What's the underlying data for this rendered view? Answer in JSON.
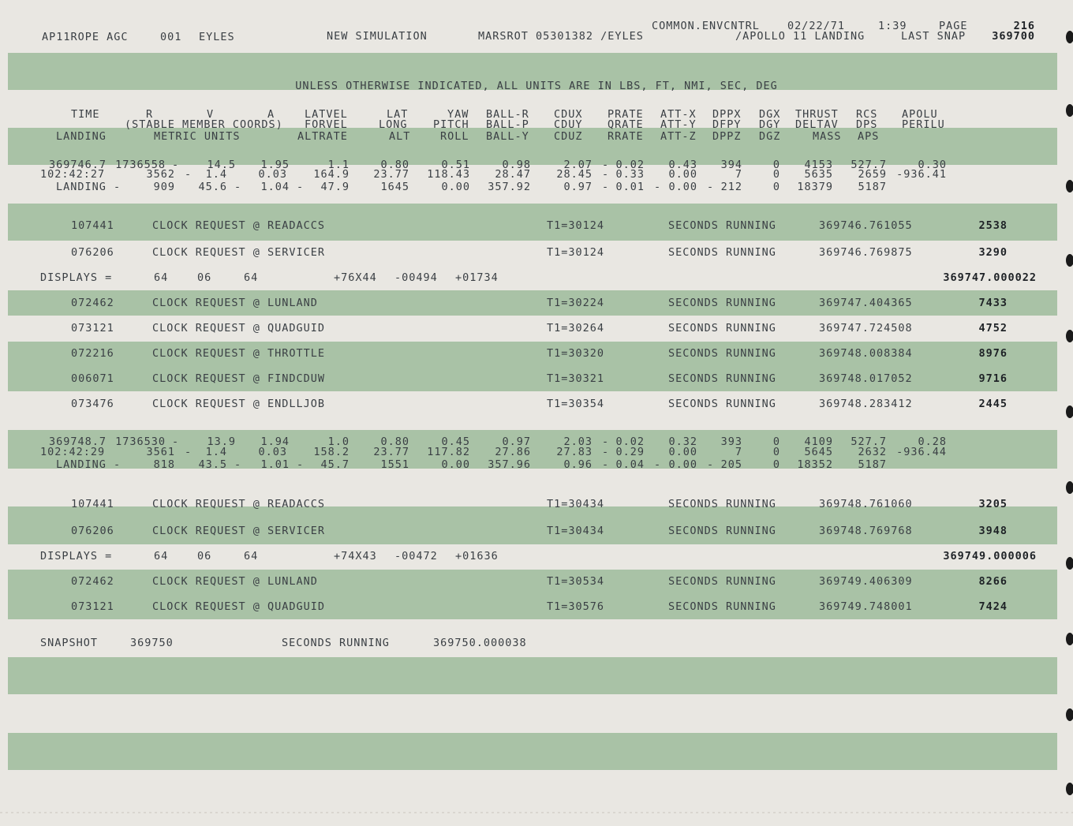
{
  "header": {
    "top": [
      "COMMON.ENVCNTRL",
      "02/22/71",
      "1:39",
      "PAGE",
      "216"
    ],
    "main": [
      "AP11ROPE AGC",
      "001",
      "EYLES",
      "NEW SIMULATION",
      "MARSROT 05301382 /EYLES",
      "/APOLLO 11 LANDING",
      "LAST SNAP",
      "369700"
    ]
  },
  "units_note": "UNLESS OTHERWISE INDICATED, ALL UNITS ARE IN LBS, FT, NMI, SEC, DEG",
  "column_headers": [
    [
      "TIME",
      "R",
      "V",
      "A",
      "LATVEL",
      "LAT",
      "YAW",
      "BALL-R",
      "CDUX",
      "PRATE",
      "ATT-X",
      "DPPX",
      "DGX",
      "THRUST",
      "RCS",
      "APOLU"
    ],
    [
      "(STABLE MEMBER COORDS)",
      "FORVEL",
      "LONG",
      "PITCH",
      "BALL-P",
      "CDUY",
      "QRATE",
      "ATT-Y",
      "DFPY",
      "DGY",
      "DELTAV",
      "DPS",
      "PERILU"
    ],
    [
      "LANDING",
      "METRIC UNITS",
      "ALTRATE",
      "ALT",
      "ROLL",
      "BALL-Y",
      "CDUZ",
      "RRATE",
      "ATT-Z",
      "DPPZ",
      "DGZ",
      "MASS",
      "APS"
    ]
  ],
  "listing": [
    [
      "369746.7",
      "1736558",
      "-",
      "14.5",
      "1.95",
      "1.1",
      "0.80",
      "0.51",
      "0.98",
      "2.07",
      "-",
      "0.02",
      "0.43",
      "394",
      "0",
      "4153",
      "527.7",
      "0.30"
    ],
    [
      "102:42:27",
      "3562",
      "-",
      "1.4",
      "0.03",
      "164.9",
      "23.77",
      "118.43",
      "28.47",
      "28.45",
      "-",
      "0.33",
      "0.00",
      "7",
      "0",
      "5635",
      "2659",
      "-936.41"
    ],
    [
      "LANDING -",
      "909",
      "45.6",
      "-",
      "1.04",
      "-",
      "47.9",
      "1645",
      "0.00",
      "357.92",
      "0.97",
      "-",
      "0.01",
      "-",
      "0.00",
      "-",
      "212",
      "0",
      "18379",
      "5187"
    ],
    [
      "107441",
      "CLOCK REQUEST @ READACCS",
      "T1=30124",
      "SECONDS RUNNING",
      "369746.761055",
      "2538"
    ],
    [
      "076206",
      "CLOCK REQUEST @ SERVICER",
      "T1=30124",
      "SECONDS RUNNING",
      "369746.769875",
      "3290"
    ],
    [
      "DISPLAYS =",
      "64",
      "06",
      "64",
      "+76X44",
      "-00494",
      "+01734",
      "369747.000022"
    ],
    [
      "072462",
      "CLOCK REQUEST @ LUNLAND",
      "T1=30224",
      "SECONDS RUNNING",
      "369747.404365",
      "7433"
    ],
    [
      "073121",
      "CLOCK REQUEST @ QUADGUID",
      "T1=30264",
      "SECONDS RUNNING",
      "369747.724508",
      "4752"
    ],
    [
      "072216",
      "CLOCK REQUEST @ THROTTLE",
      "T1=30320",
      "SECONDS RUNNING",
      "369748.008384",
      "8976"
    ],
    [
      "006071",
      "CLOCK REQUEST @ FINDCDUW",
      "T1=30321",
      "SECONDS RUNNING",
      "369748.017052",
      "9716"
    ],
    [
      "073476",
      "CLOCK REQUEST @ ENDLLJOB",
      "T1=30354",
      "SECONDS RUNNING",
      "369748.283412",
      "2445"
    ],
    [
      "369748.7",
      "1736530",
      "-",
      "13.9",
      "1.94",
      "1.0",
      "0.80",
      "0.45",
      "0.97",
      "2.03",
      "-",
      "0.02",
      "0.32",
      "393",
      "0",
      "4109",
      "527.7",
      "0.28"
    ],
    [
      "102:42:29",
      "3561",
      "-",
      "1.4",
      "0.03",
      "158.2",
      "23.77",
      "117.82",
      "27.86",
      "27.83",
      "-",
      "0.29",
      "0.00",
      "7",
      "0",
      "5645",
      "2632",
      "-936.44"
    ],
    [
      "LANDING -",
      "818",
      "43.5",
      "-",
      "1.01",
      "-",
      "45.7",
      "1551",
      "0.00",
      "357.96",
      "0.96",
      "-",
      "0.04",
      "-",
      "0.00",
      "-",
      "205",
      "0",
      "18352",
      "5187"
    ],
    [
      "107441",
      "CLOCK REQUEST @ READACCS",
      "T1=30434",
      "SECONDS RUNNING",
      "369748.761060",
      "3205"
    ],
    [
      "076206",
      "CLOCK REQUEST @ SERVICER",
      "T1=30434",
      "SECONDS RUNNING",
      "369748.769768",
      "3948"
    ],
    [
      "DISPLAYS =",
      "64",
      "06",
      "64",
      "+74X43",
      "-00472",
      "+01636",
      "369749.000006"
    ],
    [
      "072462",
      "CLOCK REQUEST @ LUNLAND",
      "T1=30534",
      "SECONDS RUNNING",
      "369749.406309",
      "8266"
    ],
    [
      "073121",
      "CLOCK REQUEST @ QUADGUID",
      "T1=30576",
      "SECONDS RUNNING",
      "369749.748001",
      "7424"
    ],
    [
      "SNAPSHOT",
      "369750",
      "SECONDS RUNNING",
      "369750.000038"
    ]
  ]
}
